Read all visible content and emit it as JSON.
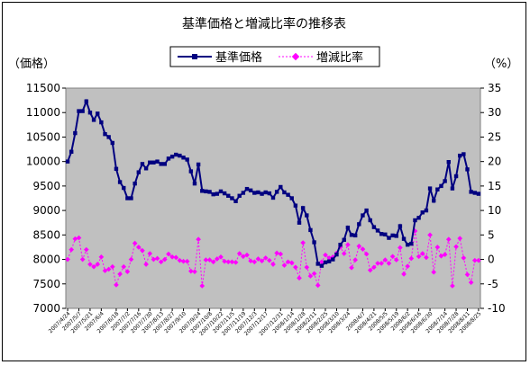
{
  "chart_data": {
    "type": "line",
    "title": "基準価格と増減比率の推移表",
    "ylabel_left": "（価格）",
    "ylabel_right": "（%）",
    "left_axis": {
      "min": 7000,
      "max": 11500,
      "ticks": [
        7000,
        7500,
        8000,
        8500,
        9000,
        9500,
        10000,
        10500,
        11000,
        11500
      ]
    },
    "right_axis": {
      "min": -10,
      "max": 35,
      "ticks": [
        -10,
        -5,
        0,
        5,
        10,
        15,
        20,
        25,
        30,
        35
      ]
    },
    "background_color": "#c0c0c0",
    "x_tick_labels": [
      "2007/4/24",
      "2007/5/7",
      "2007/5/21",
      "2007/6/4",
      "2007/6/18",
      "2007/7/2",
      "2007/7/16",
      "2007/7/30",
      "2007/8/13",
      "2007/8/27",
      "2007/9/10",
      "2007/9/24",
      "2007/10/8",
      "2007/10/22",
      "2007/11/5",
      "2007/11/19",
      "2007/12/3",
      "2007/12/17",
      "2007/12/31",
      "2008/1/14",
      "2008/1/28",
      "2008/2/11",
      "2008/2/25",
      "2008/3/10",
      "2008/3/24",
      "2008/4/7",
      "2008/4/21",
      "2008/5/5",
      "2008/5/19",
      "2008/6/2",
      "2008/6/16",
      "2008/6/30",
      "2008/7/14",
      "2008/7/28",
      "2008/8/11",
      "2008/8/25"
    ],
    "legend": {
      "position": "top"
    },
    "series": [
      {
        "name": "基準価格",
        "axis": "left",
        "color": "#000080",
        "values": [
          10000,
          10200,
          10580,
          11030,
          11030,
          11230,
          11000,
          10850,
          10980,
          10800,
          10560,
          10500,
          10380,
          9850,
          9580,
          9460,
          9250,
          9250,
          9550,
          9780,
          9950,
          9860,
          9980,
          9980,
          10000,
          9950,
          9950,
          10060,
          10100,
          10140,
          10120,
          10080,
          10040,
          9800,
          9550,
          9940,
          9400,
          9390,
          9380,
          9330,
          9340,
          9390,
          9350,
          9300,
          9250,
          9190,
          9300,
          9360,
          9440,
          9410,
          9360,
          9370,
          9340,
          9370,
          9350,
          9260,
          9380,
          9480,
          9370,
          9320,
          9250,
          9100,
          8750,
          9050,
          8900,
          8600,
          8350,
          7910,
          7870,
          7940,
          7960,
          8000,
          8100,
          8300,
          8400,
          8650,
          8500,
          8490,
          8720,
          8900,
          9000,
          8800,
          8660,
          8590,
          8520,
          8510,
          8440,
          8490,
          8480,
          8680,
          8420,
          8300,
          8320,
          8800,
          8850,
          8960,
          9000,
          9450,
          9200,
          9430,
          9500,
          9600,
          9990,
          9450,
          9700,
          10120,
          10150,
          9840,
          9380,
          9360,
          9340
        ]
      },
      {
        "name": "増減比率",
        "axis": "right",
        "color": "#ff00ff",
        "values": [
          0,
          2,
          4.2,
          4.4,
          0,
          2,
          -1,
          -1.5,
          -1,
          0.5,
          -2.3,
          -2,
          -1.5,
          -5.2,
          -3,
          -1.5,
          -2.5,
          0,
          3.3,
          2.5,
          1.8,
          -1,
          1.2,
          0,
          0.2,
          -0.5,
          0,
          1.1,
          0.5,
          0.4,
          -0.2,
          -0.4,
          -0.4,
          -2.4,
          -2.5,
          4.1,
          -5.4,
          -0.1,
          -0.1,
          -0.5,
          0.1,
          0.5,
          -0.4,
          -0.5,
          -0.5,
          -0.6,
          1.2,
          0.6,
          0.9,
          -0.3,
          -0.5,
          0.1,
          -0.3,
          0.3,
          -0.2,
          -1,
          1.3,
          1.1,
          -1.2,
          -0.5,
          -0.7,
          -1.6,
          -3.8,
          3.4,
          -1.6,
          -3.4,
          -2.9,
          -5.3,
          -0.5,
          0.9,
          0.3,
          0.5,
          1.3,
          2.5,
          1.2,
          3,
          -1.7,
          -0.1,
          2.7,
          2.1,
          1.1,
          -2.2,
          -1.6,
          -0.8,
          -0.8,
          -0.1,
          -0.8,
          0.6,
          -0.1,
          2.4,
          -3,
          -1.4,
          0.2,
          5.8,
          0.6,
          1.2,
          0.4,
          5,
          -2.6,
          2.5,
          0.7,
          1,
          4.1,
          -5.4,
          2.6,
          4.3,
          0.3,
          -3.1,
          -4.7,
          -0.2,
          -0.2
        ]
      }
    ]
  }
}
